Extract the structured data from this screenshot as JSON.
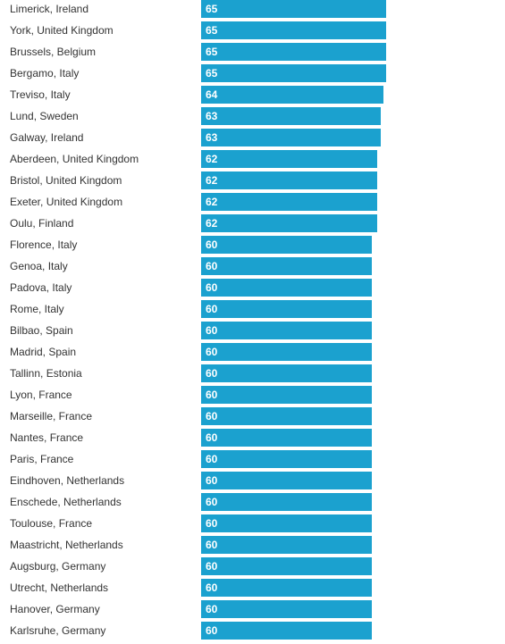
{
  "colors": {
    "bar": "#1ba1cf",
    "label": "#333333",
    "value_text": "#ffffff"
  },
  "chart_data": {
    "type": "bar",
    "orientation": "horizontal",
    "categories": [
      "Limerick, Ireland",
      "York, United Kingdom",
      "Brussels, Belgium",
      "Bergamo, Italy",
      "Treviso, Italy",
      "Lund, Sweden",
      "Galway, Ireland",
      "Aberdeen, United Kingdom",
      "Bristol, United Kingdom",
      "Exeter, United Kingdom",
      "Oulu, Finland",
      "Florence, Italy",
      "Genoa, Italy",
      "Padova, Italy",
      "Rome, Italy",
      "Bilbao, Spain",
      "Madrid, Spain",
      "Tallinn, Estonia",
      "Lyon, France",
      "Marseille, France",
      "Nantes, France",
      "Paris, France",
      "Eindhoven, Netherlands",
      "Enschede, Netherlands",
      "Toulouse, France",
      "Maastricht, Netherlands",
      "Augsburg, Germany",
      "Utrecht, Netherlands",
      "Hanover, Germany",
      "Karlsruhe, Germany"
    ],
    "values": [
      65,
      65,
      65,
      65,
      64,
      63,
      63,
      62,
      62,
      62,
      62,
      60,
      60,
      60,
      60,
      60,
      60,
      60,
      60,
      60,
      60,
      60,
      60,
      60,
      60,
      60,
      60,
      60,
      60,
      60
    ],
    "xlim": [
      0,
      65
    ],
    "grid": false,
    "legend": "none"
  }
}
